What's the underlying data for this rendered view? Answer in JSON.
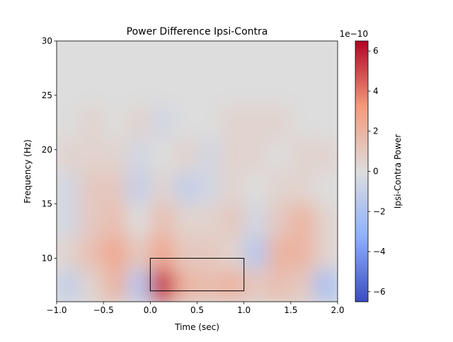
{
  "chart_data": {
    "type": "heatmap",
    "title": "Power Difference Ipsi-Contra",
    "xlabel": "Time (sec)",
    "ylabel": "Frequency (Hz)",
    "xlim": [
      -1,
      2
    ],
    "ylim": [
      6,
      30
    ],
    "xticks": [
      {
        "value": -1,
        "label": "−1.0"
      },
      {
        "value": -0.5,
        "label": "−0.5"
      },
      {
        "value": 0,
        "label": "0.0"
      },
      {
        "value": 0.5,
        "label": "0.5"
      },
      {
        "value": 1,
        "label": "1.0"
      },
      {
        "value": 1.5,
        "label": "1.5"
      },
      {
        "value": 2,
        "label": "2.0"
      }
    ],
    "yticks": [
      10,
      15,
      20,
      25,
      30
    ],
    "xbins": [
      -1,
      -0.75,
      -0.5,
      -0.25,
      0,
      0.25,
      0.5,
      0.75,
      1,
      1.25,
      1.5,
      1.75,
      2
    ],
    "ybins": [
      6,
      9,
      12,
      15,
      18,
      21,
      24,
      27,
      30
    ],
    "z": [
      [
        -1,
        0.5,
        2,
        -1.5,
        5.5,
        2,
        1.5,
        2,
        1,
        1.5,
        1,
        -2
      ],
      [
        0.5,
        1.5,
        2.5,
        1,
        2.5,
        1,
        1,
        0.5,
        -1.5,
        2,
        2,
        0.5
      ],
      [
        -0.5,
        1,
        1.5,
        0,
        1.5,
        0.5,
        0.5,
        1,
        -0.5,
        1,
        2,
        0.5
      ],
      [
        -0.5,
        1,
        1,
        -1,
        0.5,
        -1,
        -0.5,
        0.5,
        0,
        0.5,
        0.5,
        0
      ],
      [
        0.5,
        0.5,
        0.5,
        -0.5,
        0,
        0.5,
        -0.5,
        0.5,
        0.5,
        0,
        0.5,
        0.5
      ],
      [
        0,
        0.5,
        0,
        0.5,
        -0.5,
        0,
        0,
        0.5,
        0.5,
        0.5,
        0,
        0
      ],
      [
        0,
        0,
        0,
        0,
        0,
        0,
        0,
        0,
        0,
        0,
        0,
        0
      ],
      [
        0,
        0,
        0,
        0,
        0,
        0,
        0,
        0,
        0,
        0,
        0,
        0
      ]
    ],
    "colormap": "coolwarm",
    "colorbar": {
      "label": "Ipsi-Contra Power",
      "offset_label": "1e−10",
      "lim": [
        -6.5,
        6.5
      ],
      "ticks": [
        {
          "value": -6,
          "label": "−6"
        },
        {
          "value": -4,
          "label": "−4"
        },
        {
          "value": -2,
          "label": "−2"
        },
        0,
        2,
        4,
        6
      ]
    },
    "roi": {
      "x": [
        0,
        1
      ],
      "y": [
        7,
        10
      ]
    }
  }
}
